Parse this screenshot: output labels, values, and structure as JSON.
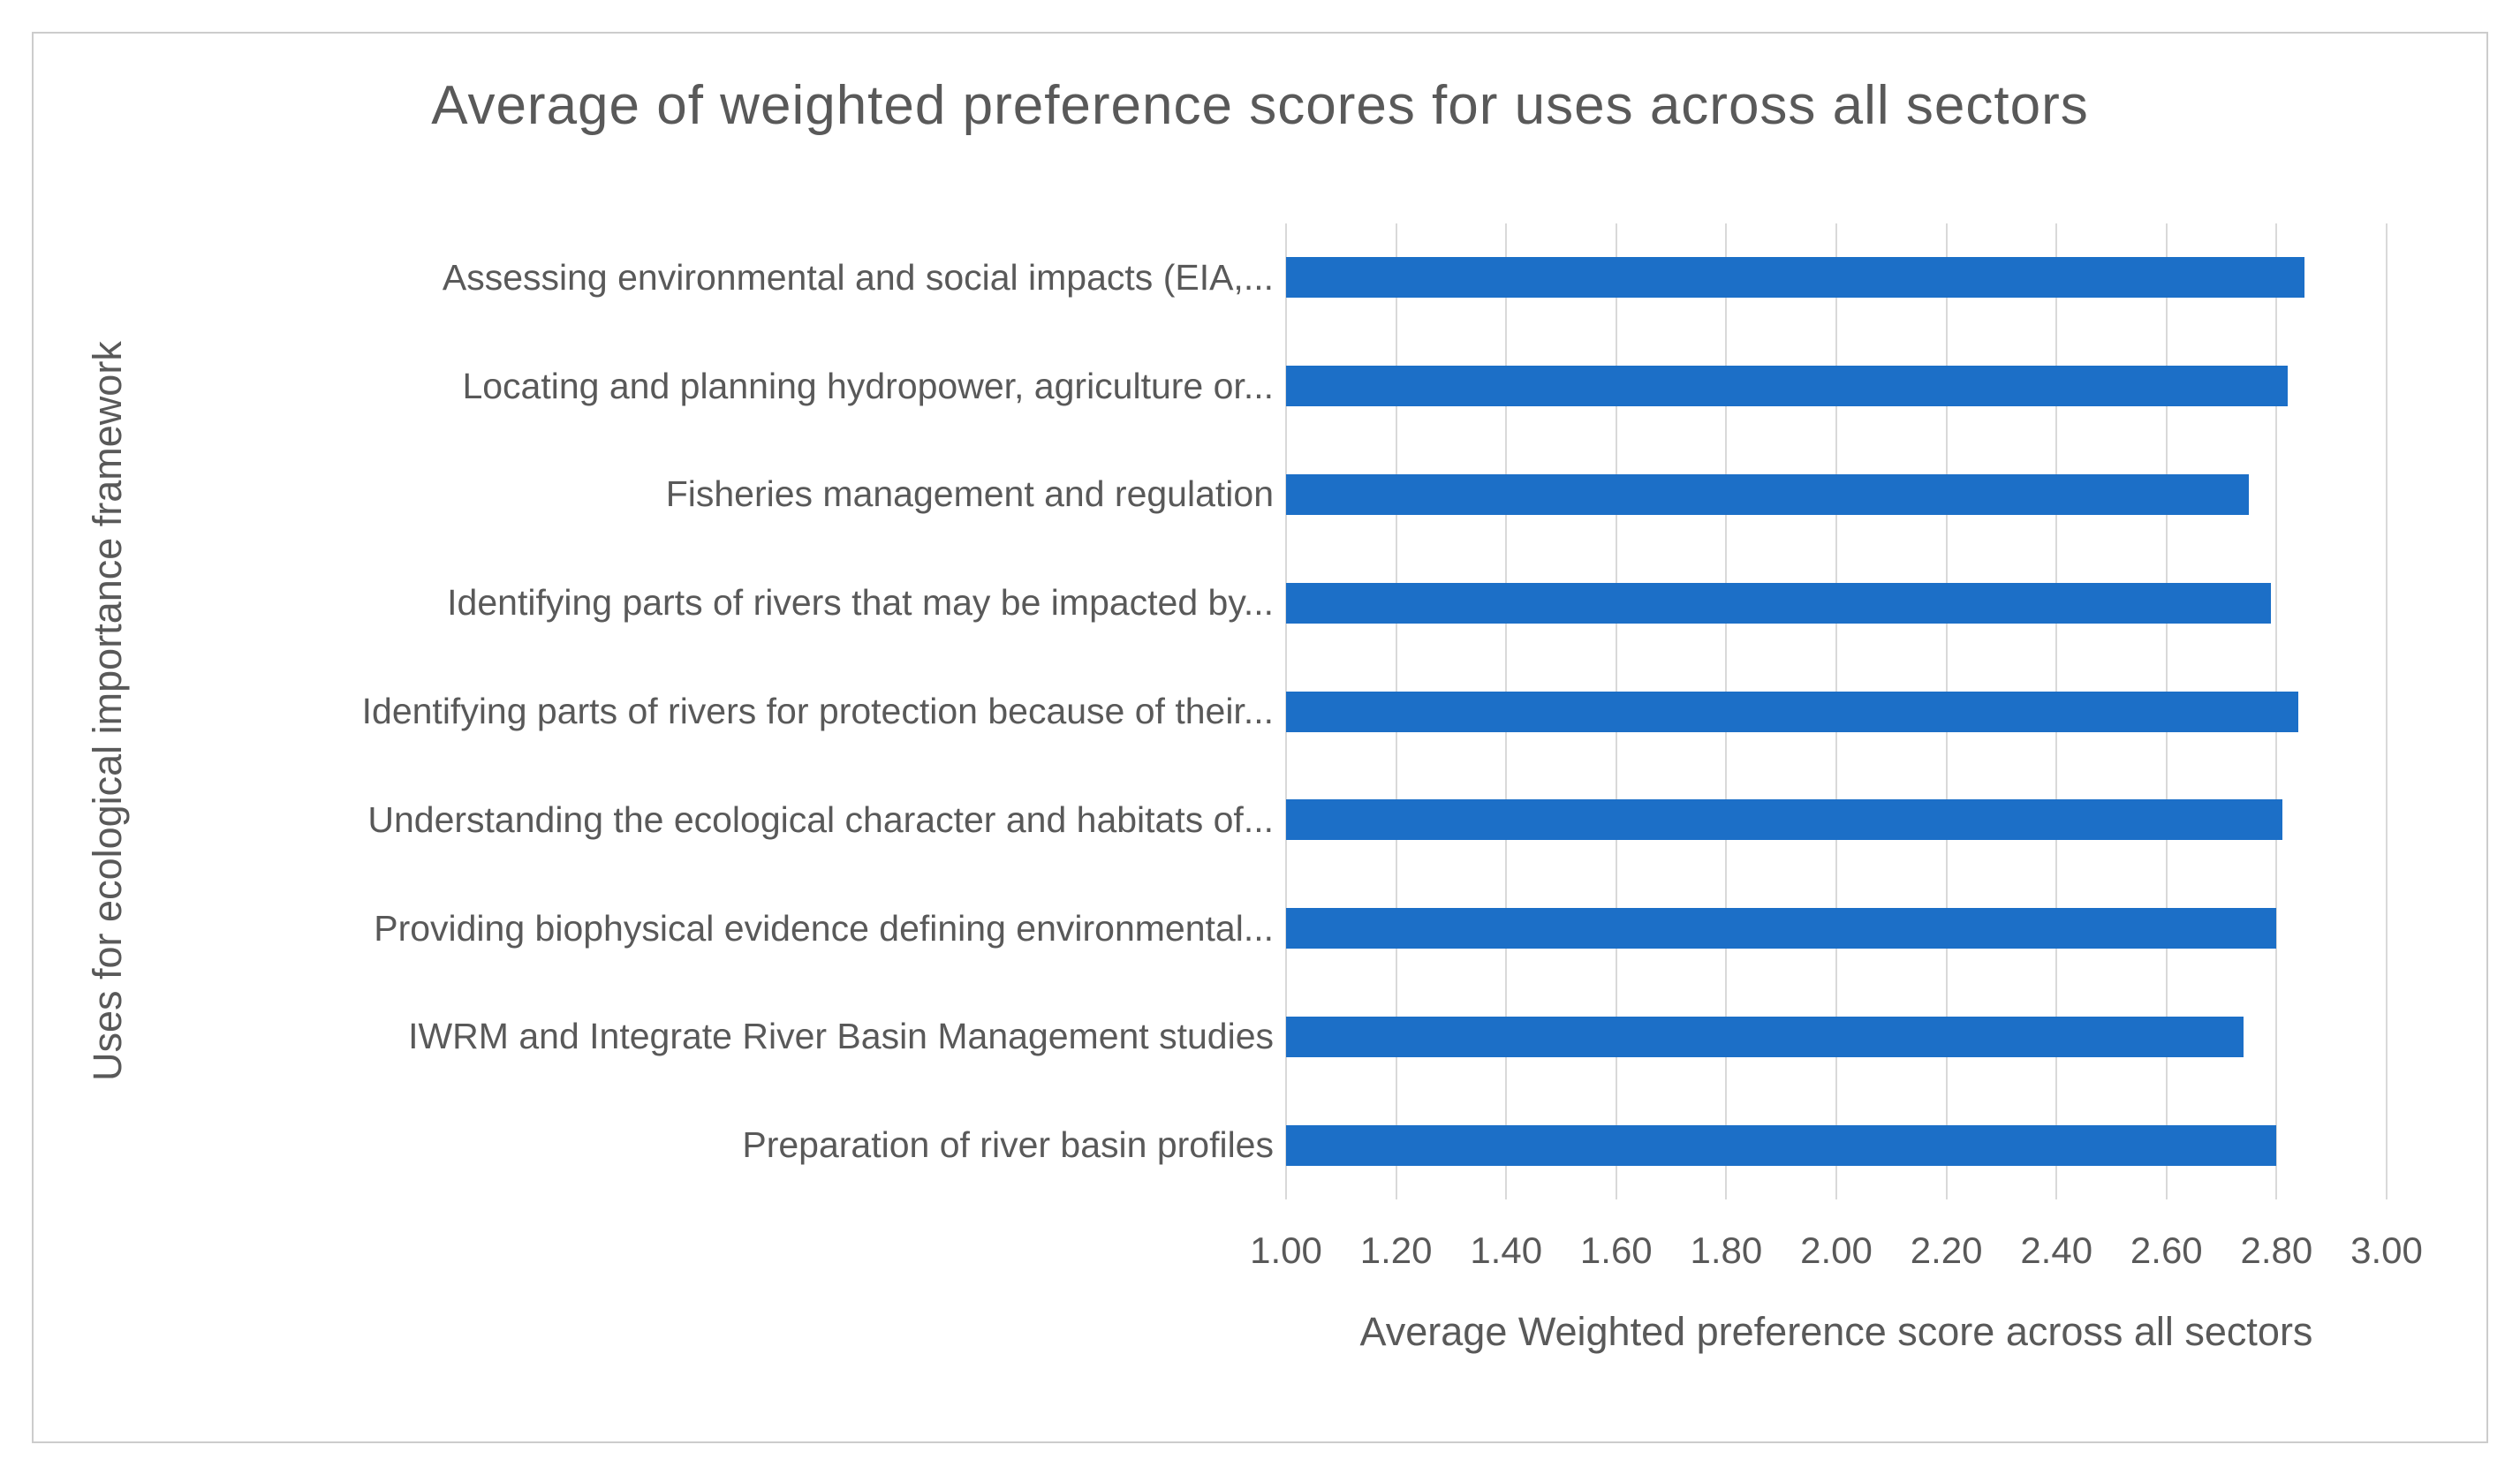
{
  "colors": {
    "bar": "#1c6fc7",
    "gridline": "#d9d9d9",
    "text": "#595959",
    "frame_border": "#cccccc",
    "background": "#ffffff"
  },
  "chart_data": {
    "type": "bar",
    "orientation": "horizontal",
    "title": "Average of weighted preference scores for uses across all sectors",
    "xlabel": "Average Weighted preference score across all sectors",
    "ylabel": "Uses for ecological importance framework",
    "categories": [
      "Assessing environmental and social impacts (EIA,...",
      "Locating and planning hydropower, agriculture or...",
      "Fisheries management and regulation",
      "Identifying parts of rivers that may be impacted by...",
      "Identifying parts of rivers for protection because of their...",
      "Understanding the ecological character and habitats of...",
      "Providing biophysical evidence defining environmental...",
      "IWRM and Integrate River Basin Management studies",
      "Preparation of river basin profiles"
    ],
    "values": [
      2.85,
      2.82,
      2.75,
      2.79,
      2.84,
      2.81,
      2.8,
      2.74,
      2.8
    ],
    "xlim": [
      1.0,
      3.0
    ],
    "xticks": [
      "1.00",
      "1.20",
      "1.40",
      "1.60",
      "1.80",
      "2.00",
      "2.20",
      "2.40",
      "2.60",
      "2.80",
      "3.00"
    ],
    "grid": "vertical",
    "legend": "none"
  }
}
